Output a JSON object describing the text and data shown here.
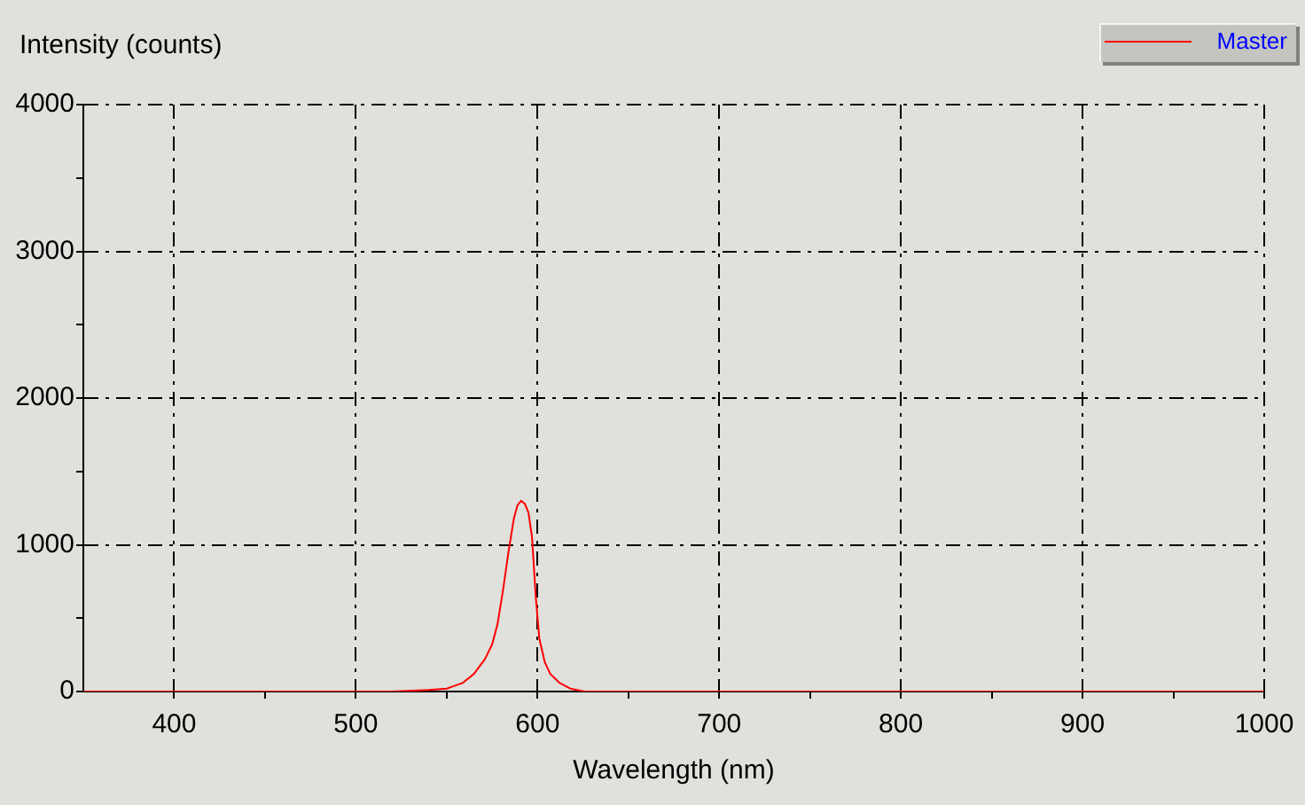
{
  "chart_data": {
    "type": "line",
    "xlabel": "Wavelength (nm)",
    "ylabel": "Intensity (counts)",
    "x": [
      350,
      400,
      450,
      500,
      520,
      540,
      550,
      559,
      565,
      571,
      575,
      578,
      581,
      584,
      587,
      589,
      591,
      593,
      595,
      597,
      599,
      601,
      604,
      607,
      612,
      618,
      626,
      640,
      660,
      700,
      750,
      800,
      850,
      900,
      950,
      1000
    ],
    "series": [
      {
        "name": "Master",
        "color": "#ff0000",
        "values": [
          0,
          0,
          0,
          0,
          0,
          10,
          20,
          60,
          120,
          220,
          320,
          460,
          690,
          950,
          1180,
          1270,
          1300,
          1280,
          1220,
          1050,
          650,
          360,
          200,
          120,
          60,
          20,
          0,
          0,
          0,
          0,
          0,
          0,
          0,
          0,
          0,
          0
        ]
      }
    ],
    "xlim": [
      350,
      1000
    ],
    "ylim": [
      0,
      4000
    ],
    "xticks": [
      400,
      {
        "value": 450,
        "label": null
      },
      500,
      {
        "value": 550,
        "label": null
      },
      600,
      {
        "value": 650,
        "label": null
      },
      700,
      {
        "value": 750,
        "label": null
      },
      800,
      {
        "value": 850,
        "label": null
      },
      900,
      {
        "value": 950,
        "label": null
      },
      1000
    ],
    "yticks": [
      0,
      {
        "value": 500,
        "label": null
      },
      1000,
      {
        "value": 1500,
        "label": null
      },
      2000,
      {
        "value": 2500,
        "label": null
      },
      3000,
      {
        "value": 3500,
        "label": null
      },
      4000
    ],
    "grid": true,
    "legend": "top right",
    "marker": "none",
    "line_style": "solid"
  }
}
